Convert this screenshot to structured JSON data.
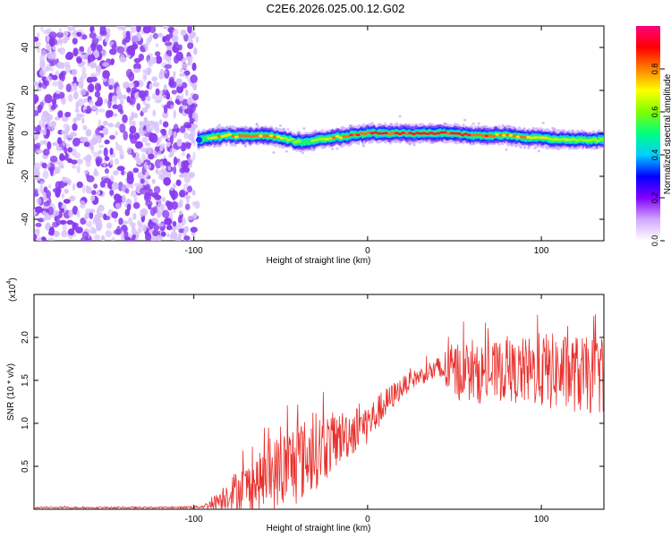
{
  "title": "C2E6.2026.025.00.12.G02",
  "colors": {
    "noise": "#8a3cf0",
    "noise_light": "#d8c2fb",
    "snr_line": "#e8302c",
    "frame": "#000000"
  },
  "chart_data": [
    {
      "type": "heatmap",
      "name": "spectrogram",
      "xlabel": "Height of straight line (km)",
      "ylabel": "Frequency (Hz)",
      "xlim": [
        -192,
        136
      ],
      "ylim": [
        -50,
        50
      ],
      "xticks": [
        -100,
        0,
        100
      ],
      "xtick_labels": [
        "-100",
        "0",
        "100"
      ],
      "yticks": [
        -40,
        -20,
        0,
        20,
        40
      ],
      "ytick_labels": [
        "-40",
        "-20",
        "0",
        "20",
        "40"
      ],
      "signal_onset_km": -98,
      "noise_region_km": [
        -192,
        -98
      ],
      "ridge": {
        "x": [
          -97,
          -90,
          -80,
          -70,
          -60,
          -50,
          -40,
          -35,
          -30,
          -20,
          -10,
          0,
          10,
          20,
          30,
          40,
          50,
          60,
          70,
          80,
          90,
          100,
          110,
          120,
          130,
          136
        ],
        "y": [
          -3,
          -2,
          -1,
          -1,
          -1,
          -2,
          -4,
          -4,
          -3,
          -2,
          -1,
          0,
          0,
          0,
          0,
          0,
          0,
          -1,
          -1,
          -1,
          -2,
          -2,
          -3,
          -3,
          -3,
          -3
        ],
        "amplitude": [
          0.45,
          0.7,
          0.8,
          0.82,
          0.8,
          0.7,
          0.55,
          0.5,
          0.6,
          0.75,
          0.85,
          0.9,
          0.9,
          0.9,
          0.95,
          0.95,
          0.9,
          0.85,
          0.85,
          0.8,
          0.75,
          0.7,
          0.65,
          0.62,
          0.6,
          0.55
        ]
      },
      "colorbar": {
        "label": "Normalized spectral amplitude",
        "range": [
          0,
          1
        ],
        "ticks": [
          0.0,
          0.2,
          0.4,
          0.6,
          0.8
        ],
        "tick_labels": [
          "0.0",
          "0.2",
          "0.4",
          "0.6",
          "0.8"
        ],
        "stops": [
          "#ffffff",
          "#d0a8ff",
          "#8000ff",
          "#0000ff",
          "#00d0ff",
          "#00ff80",
          "#80ff00",
          "#ffff00",
          "#ff8000",
          "#ff0000",
          "#ff0080"
        ]
      },
      "grid": false
    },
    {
      "type": "line",
      "name": "snr",
      "xlabel": "Height of straight line (km)",
      "ylabel": "SNR (10 * v/v)",
      "multiplier_label": "(x10",
      "multiplier_exp": "4",
      "xlim": [
        -192,
        136
      ],
      "ylim": [
        0,
        2.5
      ],
      "xticks": [
        -100,
        0,
        100
      ],
      "xtick_labels": [
        "-100",
        "0",
        "100"
      ],
      "yticks": [
        0.5,
        1.0,
        1.5,
        2.0
      ],
      "ytick_labels": [
        "0.5",
        "1.0",
        "1.5",
        "2.0"
      ],
      "series": [
        {
          "name": "SNR",
          "x": [
            -192,
            -170,
            -150,
            -130,
            -110,
            -95,
            -90,
            -85,
            -80,
            -75,
            -70,
            -65,
            -60,
            -55,
            -50,
            -45,
            -40,
            -35,
            -30,
            -25,
            -20,
            -15,
            -10,
            -5,
            0,
            5,
            10,
            15,
            20,
            25,
            30,
            35,
            40,
            45,
            50,
            55,
            60,
            65,
            70,
            75,
            80,
            85,
            90,
            95,
            100,
            105,
            110,
            115,
            120,
            125,
            130,
            136
          ],
          "mean": [
            0.02,
            0.02,
            0.02,
            0.02,
            0.02,
            0.03,
            0.06,
            0.12,
            0.18,
            0.22,
            0.25,
            0.3,
            0.35,
            0.4,
            0.45,
            0.5,
            0.55,
            0.6,
            0.68,
            0.72,
            0.78,
            0.85,
            0.9,
            0.95,
            1.0,
            1.1,
            1.22,
            1.33,
            1.42,
            1.5,
            1.55,
            1.6,
            1.62,
            1.62,
            1.6,
            1.62,
            1.55,
            1.58,
            1.58,
            1.6,
            1.62,
            1.58,
            1.6,
            1.6,
            1.62,
            1.6,
            1.6,
            1.58,
            1.58,
            1.55,
            1.55,
            1.58
          ],
          "spread": [
            0.01,
            0.01,
            0.01,
            0.01,
            0.01,
            0.02,
            0.06,
            0.12,
            0.18,
            0.25,
            0.28,
            0.3,
            0.35,
            0.4,
            0.45,
            0.5,
            0.5,
            0.45,
            0.45,
            0.4,
            0.35,
            0.3,
            0.3,
            0.25,
            0.25,
            0.2,
            0.18,
            0.15,
            0.12,
            0.1,
            0.1,
            0.12,
            0.15,
            0.25,
            0.35,
            0.35,
            0.3,
            0.35,
            0.35,
            0.35,
            0.35,
            0.35,
            0.4,
            0.4,
            0.45,
            0.45,
            0.45,
            0.45,
            0.45,
            0.45,
            0.45,
            0.45
          ]
        }
      ],
      "grid": false
    }
  ]
}
